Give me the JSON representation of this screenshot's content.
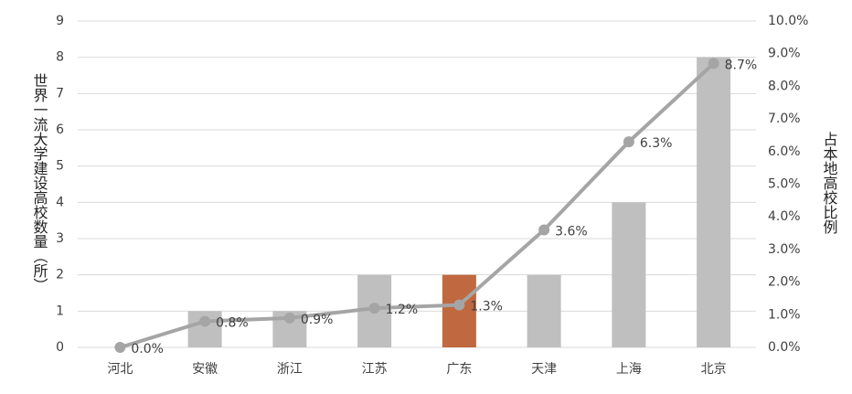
{
  "chart_data": {
    "type": "combo",
    "categories": [
      "河北",
      "安徽",
      "浙江",
      "江苏",
      "广东",
      "天津",
      "上海",
      "北京"
    ],
    "y_label": "世界一流大学建设高校数量（所）",
    "y2_label": "占本地高校比例",
    "ylim": [
      0,
      9
    ],
    "yticks": [
      0,
      1,
      2,
      3,
      4,
      5,
      6,
      7,
      8,
      9
    ],
    "y2lim": [
      0,
      10
    ],
    "y2ticks": [
      {
        "value": 0,
        "label": "0.0%"
      },
      {
        "value": 1,
        "label": "1.0%"
      },
      {
        "value": 2,
        "label": "2.0%"
      },
      {
        "value": 3,
        "label": "3.0%"
      },
      {
        "value": 4,
        "label": "4.0%"
      },
      {
        "value": 5,
        "label": "5.0%"
      },
      {
        "value": 6,
        "label": "6.0%"
      },
      {
        "value": 7,
        "label": "7.0%"
      },
      {
        "value": 8,
        "label": "8.0%"
      },
      {
        "value": 9,
        "label": "9.0%"
      },
      {
        "value": 10,
        "label": "10.0%"
      }
    ],
    "grid": true,
    "series": [
      {
        "type": "bar",
        "values": [
          0,
          1,
          1,
          2,
          2,
          2,
          4,
          8
        ],
        "colors": [
          "#bfbfbf",
          "#bfbfbf",
          "#bfbfbf",
          "#bfbfbf",
          "#c0683f",
          "#bfbfbf",
          "#bfbfbf",
          "#bfbfbf"
        ]
      },
      {
        "type": "line",
        "axis": "y2",
        "color": "#a5a5a5",
        "values": [
          0,
          0.8,
          0.9,
          1.2,
          1.3,
          3.6,
          6.3,
          8.7
        ],
        "value_labels": [
          "0.0%",
          "0.8%",
          "0.9%",
          "1.2%",
          "1.3%",
          "3.6%",
          "6.3%",
          "8.7%"
        ]
      }
    ]
  }
}
